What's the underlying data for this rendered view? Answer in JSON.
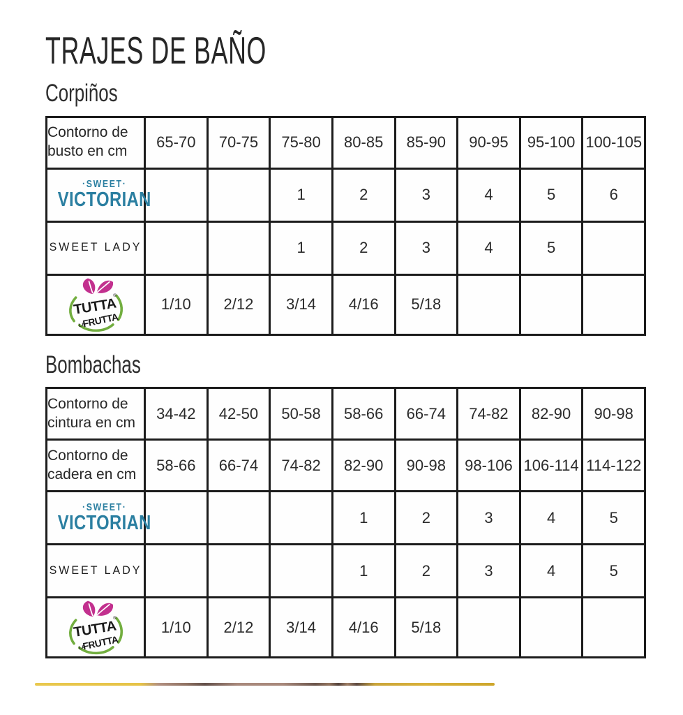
{
  "page_title": "TRAJES DE BAÑO",
  "sections": [
    {
      "heading": "Corpiños",
      "rows": [
        {
          "kind": "text",
          "label": "Contorno de busto en cm",
          "values": [
            "65-70",
            "70-75",
            "75-80",
            "80-85",
            "85-90",
            "90-95",
            "95-100",
            "100-105"
          ]
        },
        {
          "kind": "sweet-victorian",
          "values": [
            "",
            "",
            "1",
            "2",
            "3",
            "4",
            "5",
            "6"
          ]
        },
        {
          "kind": "sweet-lady",
          "values": [
            "",
            "",
            "1",
            "2",
            "3",
            "4",
            "5",
            ""
          ]
        },
        {
          "kind": "tutta",
          "values": [
            "1/10",
            "2/12",
            "3/14",
            "4/16",
            "5/18",
            "",
            "",
            ""
          ]
        }
      ]
    },
    {
      "heading": "Bombachas",
      "rows": [
        {
          "kind": "text",
          "label": "Contorno de cintura en cm",
          "values": [
            "34-42",
            "42-50",
            "50-58",
            "58-66",
            "66-74",
            "74-82",
            "82-90",
            "90-98"
          ]
        },
        {
          "kind": "text",
          "label": "Contorno de cadera en cm",
          "values": [
            "58-66",
            "66-74",
            "74-82",
            "82-90",
            "90-98",
            "98-106",
            "106-114",
            "114-122"
          ]
        },
        {
          "kind": "sweet-victorian",
          "values": [
            "",
            "",
            "",
            "1",
            "2",
            "3",
            "4",
            "5"
          ]
        },
        {
          "kind": "sweet-lady",
          "values": [
            "",
            "",
            "",
            "1",
            "2",
            "3",
            "4",
            "5"
          ]
        },
        {
          "kind": "tutta",
          "values": [
            "1/10",
            "2/12",
            "3/14",
            "4/16",
            "5/18",
            "",
            "",
            ""
          ]
        }
      ]
    }
  ],
  "brands": {
    "sweet_victorian": {
      "top": "·SWEET·",
      "name": "VICTORIAN",
      "color": "#2b7fa1"
    },
    "sweet_lady": {
      "name": "SWEET LADY"
    },
    "tutta_la_frutta": {
      "word1": "TUTTA",
      "word2_small": "LA",
      "word2": "FRUTTA",
      "registered": "®",
      "leaf_color": "#c2308e",
      "arc_color": "#72ae3f"
    }
  },
  "footer_divider": {
    "gold": "#e6c348",
    "brown": "#8f7263",
    "dark": "#54423c"
  }
}
